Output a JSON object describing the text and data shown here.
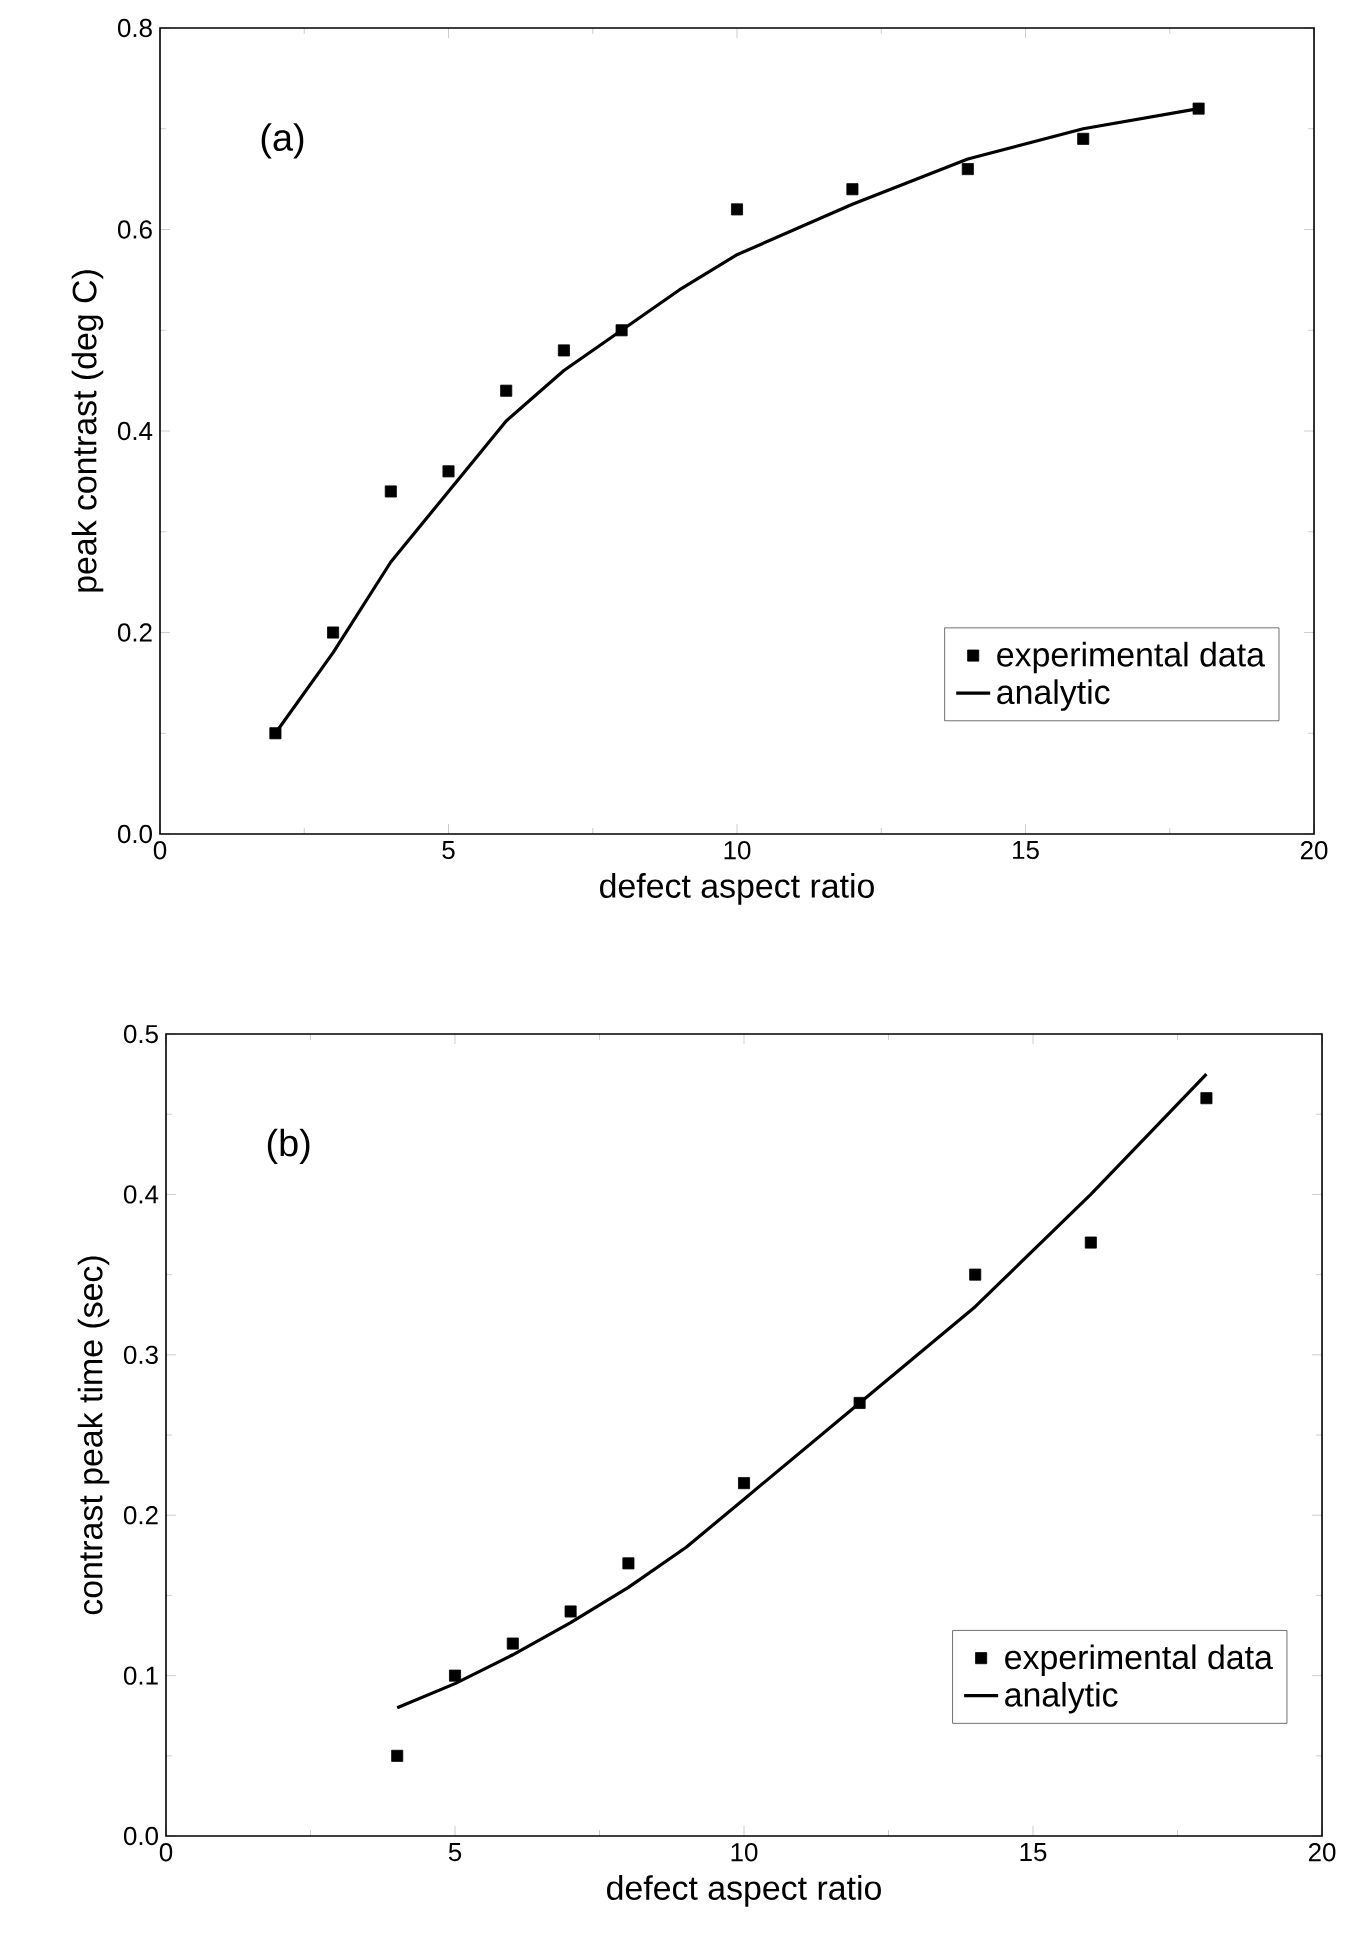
{
  "chart_data": [
    {
      "type": "scatter",
      "xlabel": "defect aspect ratio",
      "ylabel": "peak contrast  (deg C)",
      "annotations": [
        "(a)"
      ],
      "xlim": [
        0,
        20
      ],
      "ylim": [
        0,
        0.8
      ],
      "xticks": [
        0,
        5,
        10,
        15,
        20
      ],
      "yticks": [
        {
          "value": 0,
          "label": "0.0"
        },
        0.2,
        0.4,
        0.6,
        0.8
      ],
      "legend": "bottom right",
      "grid": false,
      "series": [
        {
          "name": "experimental data",
          "marker": "square",
          "color": "#000000",
          "x": [
            2,
            3,
            4,
            5,
            6,
            7,
            8,
            10,
            12,
            14,
            16,
            18
          ],
          "values": [
            0.1,
            0.2,
            0.34,
            0.36,
            0.44,
            0.48,
            0.5,
            0.62,
            0.64,
            0.66,
            0.69,
            0.72
          ]
        },
        {
          "name": "analytic",
          "type": "line",
          "line_style": "solid",
          "color": "#000000",
          "x": [
            2,
            3,
            4,
            5,
            6,
            7,
            8,
            9,
            10,
            12,
            14,
            16,
            18
          ],
          "values": [
            0.1,
            0.18,
            0.27,
            0.34,
            0.41,
            0.46,
            0.5,
            0.54,
            0.575,
            0.625,
            0.67,
            0.7,
            0.72
          ]
        }
      ]
    },
    {
      "type": "scatter",
      "xlabel": "defect aspect ratio",
      "ylabel": "contrast peak time (sec)",
      "annotations": [
        "(b)"
      ],
      "xlim": [
        0,
        20
      ],
      "ylim": [
        0,
        0.5
      ],
      "xticks": [
        0,
        5,
        10,
        15,
        20
      ],
      "yticks": [
        {
          "value": 0,
          "label": "0.0"
        },
        0.1,
        0.2,
        0.3,
        0.4,
        0.5
      ],
      "legend": "bottom right",
      "grid": false,
      "series": [
        {
          "name": "experimental data",
          "marker": "square",
          "color": "#000000",
          "x": [
            4,
            5,
            6,
            7,
            8,
            10,
            12,
            14,
            16,
            18
          ],
          "values": [
            0.05,
            0.1,
            0.12,
            0.14,
            0.17,
            0.22,
            0.27,
            0.35,
            0.37,
            0.46
          ]
        },
        {
          "name": "analytic",
          "type": "line",
          "line_style": "solid",
          "color": "#000000",
          "x": [
            4,
            5,
            6,
            7,
            8,
            9,
            10,
            12,
            14,
            16,
            18
          ],
          "values": [
            0.08,
            0.095,
            0.113,
            0.133,
            0.155,
            0.18,
            0.21,
            0.27,
            0.33,
            0.4,
            0.475
          ]
        }
      ]
    }
  ]
}
